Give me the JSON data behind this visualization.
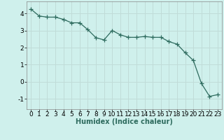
{
  "x": [
    0,
    1,
    2,
    3,
    4,
    5,
    6,
    7,
    8,
    9,
    10,
    11,
    12,
    13,
    14,
    15,
    16,
    17,
    18,
    19,
    20,
    21,
    22,
    23
  ],
  "y": [
    4.25,
    3.85,
    3.78,
    3.78,
    3.65,
    3.45,
    3.45,
    3.05,
    2.58,
    2.45,
    3.0,
    2.75,
    2.6,
    2.6,
    2.65,
    2.6,
    2.6,
    2.35,
    2.2,
    1.7,
    1.25,
    -0.1,
    -0.85,
    -0.75
  ],
  "line_color": "#2e6b5e",
  "marker": "+",
  "markersize": 4,
  "linewidth": 0.9,
  "background_color": "#cff0ec",
  "grid_color": "#c0dcd8",
  "xlabel": "Humidex (Indice chaleur)",
  "xlabel_fontsize": 7,
  "tick_fontsize": 6.5,
  "ylim": [
    -1.6,
    4.7
  ],
  "xlim": [
    -0.5,
    23.5
  ],
  "yticks": [
    -1,
    0,
    1,
    2,
    3,
    4
  ],
  "xticks": [
    0,
    1,
    2,
    3,
    4,
    5,
    6,
    7,
    8,
    9,
    10,
    11,
    12,
    13,
    14,
    15,
    16,
    17,
    18,
    19,
    20,
    21,
    22,
    23
  ]
}
